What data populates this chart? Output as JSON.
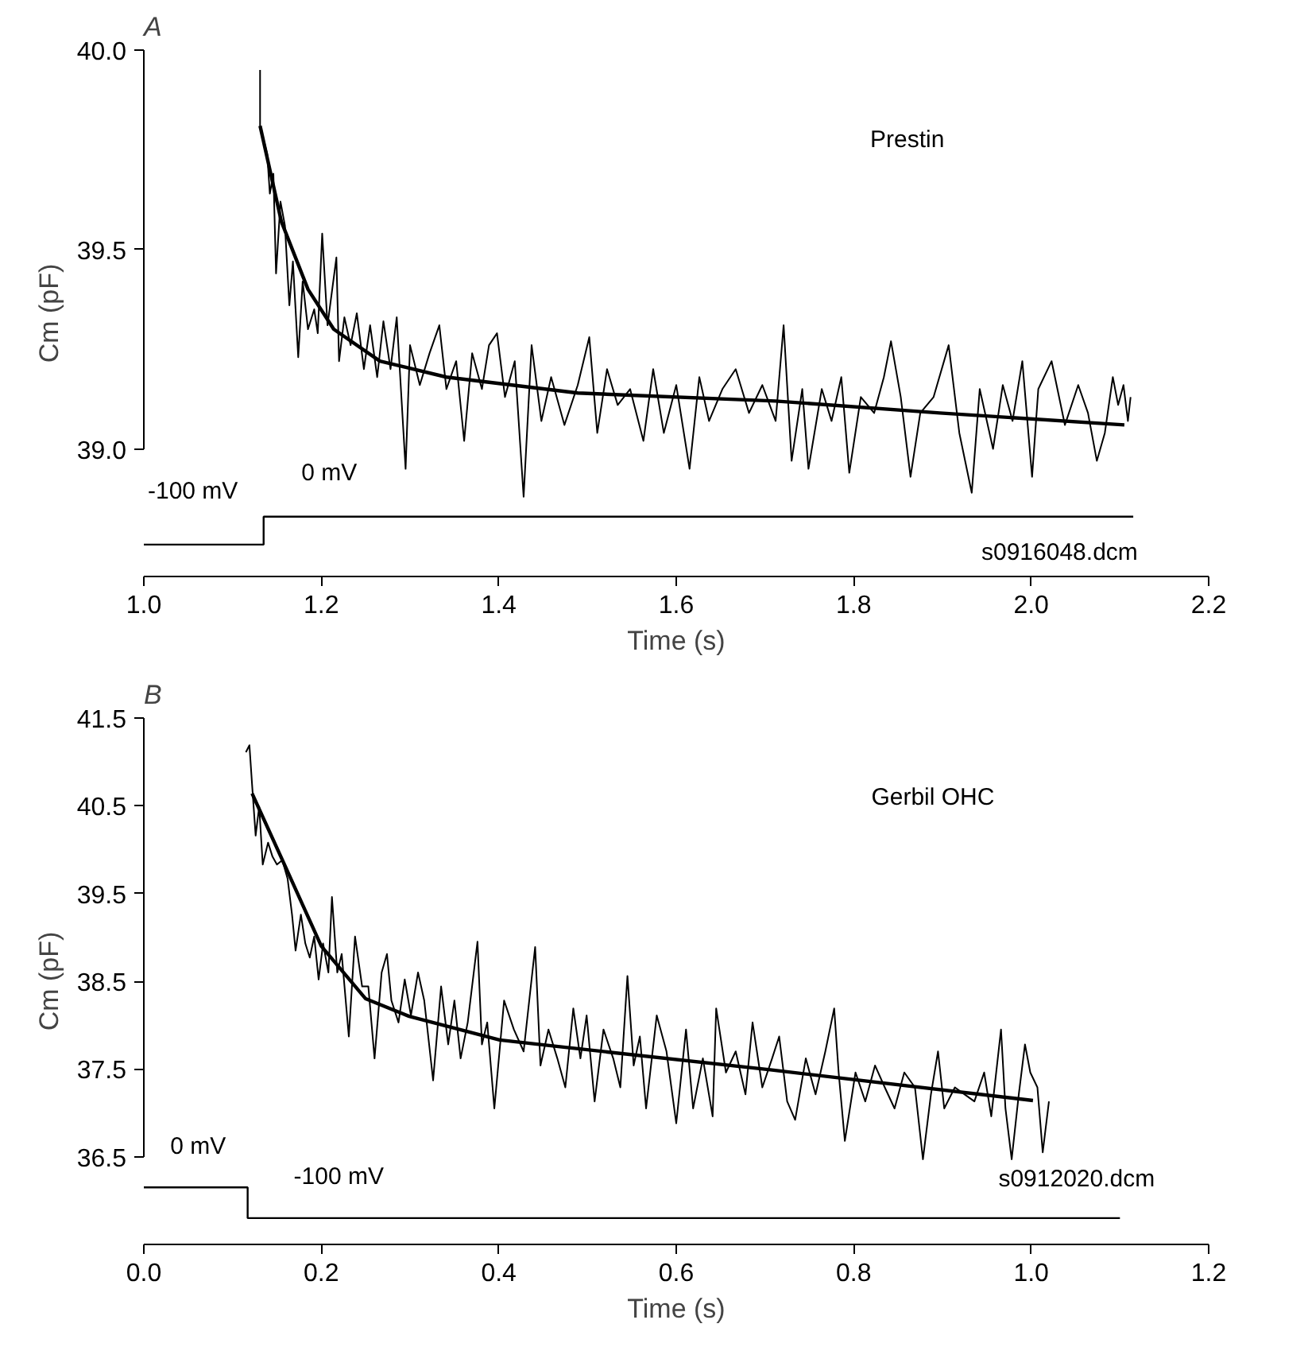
{
  "chart_data": [
    {
      "type": "line",
      "title": "A",
      "xlabel": "Time (s)",
      "ylabel": "Cm (pF)",
      "xlim": [
        1.0,
        2.2
      ],
      "ylim": [
        38.68,
        40.0
      ],
      "xticks": [
        {
          "value": 1.0,
          "label": "1.0"
        },
        {
          "value": 1.2,
          "label": "1.2"
        },
        {
          "value": 1.4,
          "label": "1.4"
        },
        {
          "value": 1.6,
          "label": "1.6"
        },
        {
          "value": 1.8,
          "label": "1.8"
        },
        {
          "value": 2.0,
          "label": "2.0"
        },
        {
          "value": 2.2,
          "label": "2.2"
        }
      ],
      "yticks": [
        {
          "value": 39.0,
          "label": "39.0"
        },
        {
          "value": 39.5,
          "label": "39.5"
        },
        {
          "value": 40.0,
          "label": "40.0"
        }
      ],
      "series": [
        {
          "color": "#000000",
          "x": [
            1.131,
            1.131,
            1.139,
            1.142,
            1.146,
            1.149,
            1.154,
            1.159,
            1.164,
            1.168,
            1.174,
            1.179,
            1.185,
            1.192,
            1.196,
            1.201,
            1.207,
            1.217,
            1.22,
            1.226,
            1.233,
            1.24,
            1.248,
            1.255,
            1.263,
            1.27,
            1.278,
            1.285,
            1.295,
            1.3,
            1.311,
            1.322,
            1.333,
            1.341,
            1.352,
            1.361,
            1.37,
            1.381,
            1.389,
            1.398,
            1.407,
            1.418,
            1.428,
            1.437,
            1.448,
            1.459,
            1.474,
            1.489,
            1.502,
            1.511,
            1.522,
            1.534,
            1.548,
            1.563,
            1.574,
            1.586,
            1.6,
            1.615,
            1.626,
            1.637,
            1.652,
            1.667,
            1.682,
            1.697,
            1.712,
            1.721,
            1.73,
            1.742,
            1.749,
            1.764,
            1.775,
            1.786,
            1.795,
            1.808,
            1.823,
            1.834,
            1.842,
            1.853,
            1.864,
            1.875,
            1.89,
            1.907,
            1.919,
            1.933,
            1.942,
            1.957,
            1.968,
            1.979,
            1.99,
            2.001,
            2.008,
            2.023,
            2.038,
            2.053,
            2.064,
            2.074,
            2.083,
            2.092,
            2.098,
            2.104,
            2.109,
            2.112
          ],
          "values": [
            39.95,
            39.81,
            39.74,
            39.64,
            39.69,
            39.44,
            39.62,
            39.56,
            39.36,
            39.47,
            39.23,
            39.42,
            39.3,
            39.35,
            39.29,
            39.54,
            39.31,
            39.48,
            39.22,
            39.33,
            39.26,
            39.34,
            39.2,
            39.31,
            39.18,
            39.32,
            39.2,
            39.33,
            38.95,
            39.26,
            39.16,
            39.24,
            39.31,
            39.15,
            39.22,
            39.02,
            39.24,
            39.15,
            39.26,
            39.29,
            39.13,
            39.22,
            38.88,
            39.26,
            39.07,
            39.18,
            39.06,
            39.16,
            39.28,
            39.04,
            39.2,
            39.11,
            39.15,
            39.02,
            39.2,
            39.04,
            39.16,
            38.95,
            39.18,
            39.07,
            39.15,
            39.2,
            39.09,
            39.16,
            39.07,
            39.31,
            38.97,
            39.15,
            38.95,
            39.15,
            39.07,
            39.18,
            38.94,
            39.13,
            39.09,
            39.18,
            39.27,
            39.13,
            38.93,
            39.09,
            39.13,
            39.26,
            39.04,
            38.89,
            39.15,
            39.0,
            39.16,
            39.07,
            39.22,
            38.93,
            39.15,
            39.22,
            39.06,
            39.16,
            39.09,
            38.97,
            39.04,
            39.18,
            39.11,
            39.16,
            39.07,
            39.13
          ]
        },
        {
          "color": "#000000",
          "x": [
            1.131,
            1.155,
            1.185,
            1.214,
            1.266,
            1.341,
            1.489,
            1.712,
            1.897,
            2.105
          ],
          "values": [
            39.81,
            39.57,
            39.4,
            39.3,
            39.22,
            39.18,
            39.14,
            39.12,
            39.09,
            39.06
          ]
        },
        {
          "type": "step",
          "color": "#000000",
          "x": [
            1.0,
            1.135,
            2.115
          ],
          "values": [
            38.76,
            38.83,
            38.83
          ]
        }
      ],
      "annotations": [
        "-100 mV",
        "0 mV",
        "Prestin",
        "s0916048.dcm"
      ]
    },
    {
      "type": "line",
      "title": "B",
      "xlabel": "Time (s)",
      "ylabel": "Cm (pF)",
      "xlim": [
        0.0,
        1.2
      ],
      "ylim": [
        35.5,
        41.5
      ],
      "xticks": [
        {
          "value": 0.0,
          "label": "0.0"
        },
        {
          "value": 0.2,
          "label": "0.2"
        },
        {
          "value": 0.4,
          "label": "0.4"
        },
        {
          "value": 0.6,
          "label": "0.6"
        },
        {
          "value": 0.8,
          "label": "0.8"
        },
        {
          "value": 1.0,
          "label": "1.0"
        },
        {
          "value": 1.2,
          "label": "1.2"
        }
      ],
      "yticks": [
        36.5,
        37.5,
        38.5,
        39.5,
        40.5,
        41.5
      ],
      "series": [
        {
          "color": "#000000",
          "x": [
            0.115,
            0.119,
            0.122,
            0.126,
            0.13,
            0.134,
            0.14,
            0.145,
            0.15,
            0.156,
            0.162,
            0.167,
            0.171,
            0.177,
            0.182,
            0.187,
            0.192,
            0.197,
            0.202,
            0.208,
            0.212,
            0.218,
            0.223,
            0.231,
            0.238,
            0.246,
            0.253,
            0.26,
            0.268,
            0.274,
            0.279,
            0.287,
            0.294,
            0.301,
            0.309,
            0.316,
            0.326,
            0.335,
            0.343,
            0.35,
            0.357,
            0.365,
            0.376,
            0.381,
            0.387,
            0.395,
            0.406,
            0.417,
            0.428,
            0.441,
            0.447,
            0.456,
            0.466,
            0.475,
            0.484,
            0.492,
            0.499,
            0.508,
            0.518,
            0.529,
            0.537,
            0.545,
            0.552,
            0.559,
            0.566,
            0.578,
            0.589,
            0.6,
            0.611,
            0.619,
            0.63,
            0.641,
            0.645,
            0.656,
            0.667,
            0.678,
            0.686,
            0.697,
            0.708,
            0.716,
            0.725,
            0.734,
            0.746,
            0.757,
            0.768,
            0.778,
            0.783,
            0.79,
            0.802,
            0.813,
            0.824,
            0.835,
            0.846,
            0.857,
            0.869,
            0.878,
            0.887,
            0.895,
            0.902,
            0.914,
            0.925,
            0.936,
            0.947,
            0.955,
            0.966,
            0.971,
            0.978,
            0.986,
            0.993,
            0.999,
            1.007,
            1.013,
            1.02
          ],
          "values": [
            41.11,
            41.19,
            40.74,
            40.16,
            40.49,
            39.83,
            40.08,
            39.92,
            39.83,
            39.88,
            39.67,
            39.26,
            38.85,
            39.26,
            38.93,
            38.77,
            39.01,
            38.52,
            38.93,
            38.6,
            39.46,
            38.6,
            38.81,
            37.87,
            39.01,
            38.44,
            38.44,
            37.62,
            38.6,
            38.81,
            38.28,
            38.03,
            38.52,
            38.11,
            38.6,
            38.28,
            37.37,
            38.44,
            37.78,
            38.28,
            37.62,
            38.03,
            38.95,
            37.78,
            38.03,
            37.05,
            38.28,
            37.95,
            37.7,
            38.89,
            37.54,
            37.95,
            37.62,
            37.29,
            38.19,
            37.62,
            38.11,
            37.13,
            37.95,
            37.62,
            37.29,
            38.56,
            37.54,
            37.87,
            37.05,
            38.11,
            37.7,
            36.88,
            37.95,
            37.05,
            37.62,
            36.96,
            38.19,
            37.46,
            37.7,
            37.21,
            38.03,
            37.29,
            37.62,
            37.87,
            37.13,
            36.92,
            37.62,
            37.21,
            37.7,
            38.19,
            37.46,
            36.68,
            37.46,
            37.13,
            37.54,
            37.29,
            37.05,
            37.46,
            37.29,
            36.47,
            37.21,
            37.7,
            37.05,
            37.29,
            37.21,
            37.13,
            37.46,
            36.96,
            37.95,
            37.05,
            36.47,
            37.21,
            37.78,
            37.46,
            37.29,
            36.55,
            37.13
          ]
        },
        {
          "color": "#000000",
          "x": [
            0.122,
            0.158,
            0.2,
            0.25,
            0.299,
            0.401,
            0.463,
            0.706,
            1.002
          ],
          "values": [
            40.64,
            39.84,
            38.9,
            38.3,
            38.1,
            37.83,
            37.76,
            37.49,
            37.14
          ]
        },
        {
          "type": "step",
          "color": "#000000",
          "x": [
            0.0,
            0.117,
            1.1
          ],
          "values": [
            36.15,
            35.8,
            35.8
          ]
        }
      ],
      "annotations": [
        "0 mV",
        "-100 mV",
        "Gerbil OHC",
        "s0912020.dcm"
      ]
    }
  ]
}
